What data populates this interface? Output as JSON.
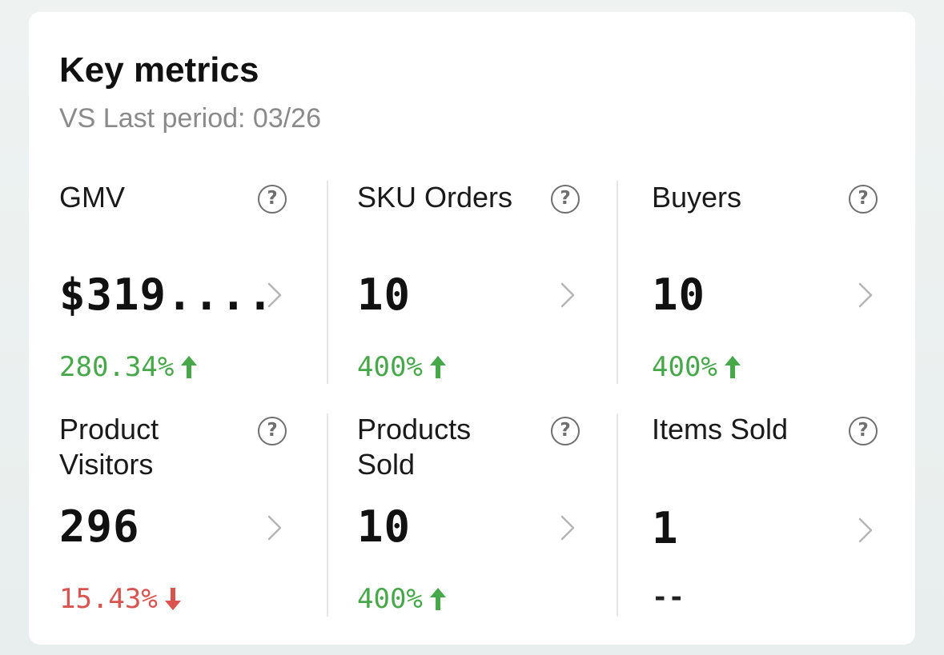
{
  "header": {
    "title": "Key metrics",
    "subtitle": "VS Last period: 03/26"
  },
  "colors": {
    "up": "#47a84a",
    "down": "#d9534f",
    "icon_gray": "#6f6f6f"
  },
  "metrics": [
    {
      "label": "GMV",
      "value": "$319....",
      "change": "280.34%",
      "trend": "up",
      "help_icon": "question-circle-icon",
      "chevron_icon": "chevron-right-icon"
    },
    {
      "label": "SKU Orders",
      "value": "10",
      "change": "400%",
      "trend": "up",
      "help_icon": "question-circle-icon",
      "chevron_icon": "chevron-right-icon"
    },
    {
      "label": "Buyers",
      "value": "10",
      "change": "400%",
      "trend": "up",
      "help_icon": "question-circle-icon",
      "chevron_icon": "chevron-right-icon"
    },
    {
      "label": "Product\nVisitors",
      "value": "296",
      "change": "15.43%",
      "trend": "down",
      "help_icon": "question-circle-icon",
      "chevron_icon": "chevron-right-icon"
    },
    {
      "label": "Products\nSold",
      "value": "10",
      "change": "400%",
      "trend": "up",
      "help_icon": "question-circle-icon",
      "chevron_icon": "chevron-right-icon"
    },
    {
      "label": "Items Sold",
      "value": "1",
      "change": "--",
      "trend": "none",
      "help_icon": "question-circle-icon",
      "chevron_icon": "chevron-right-icon"
    }
  ]
}
